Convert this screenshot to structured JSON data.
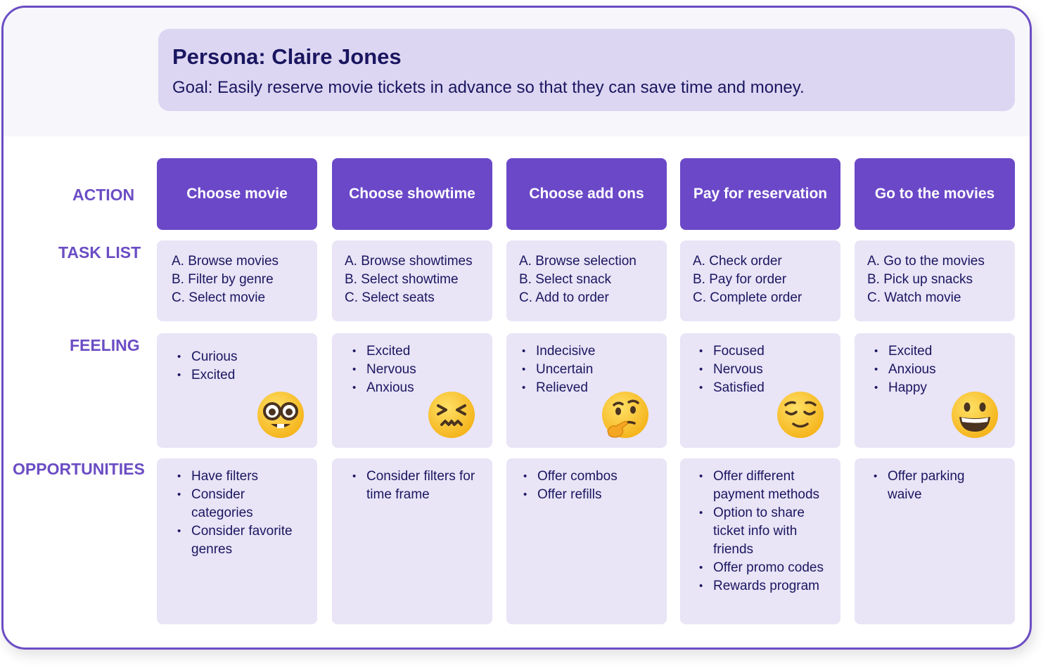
{
  "persona": {
    "name": "Persona: Claire Jones",
    "goal": "Goal: Easily reserve movie tickets in advance so that they can save time and money."
  },
  "row_labels": {
    "action": "ACTION",
    "task_list": "TASK LIST",
    "feeling": "FEELING",
    "opportunities": "OPPORTUNITIES"
  },
  "columns": [
    {
      "action": "Choose movie",
      "tasks": [
        "A. Browse movies",
        "B. Filter by genre",
        "C. Select movie"
      ],
      "feelings": [
        "Curious",
        "Excited"
      ],
      "emoji": "nerd-face-icon",
      "opportunities": [
        "Have filters",
        "Consider categories",
        "Consider favorite genres"
      ]
    },
    {
      "action": "Choose showtime",
      "tasks": [
        "A. Browse showtimes",
        "B. Select showtime",
        "C. Select seats"
      ],
      "feelings": [
        "Excited",
        "Nervous",
        "Anxious"
      ],
      "emoji": "confounded-face-icon",
      "opportunities": [
        "Consider filters for time frame"
      ]
    },
    {
      "action": "Choose add ons",
      "tasks": [
        "A. Browse selection",
        "B. Select snack",
        "C. Add to order"
      ],
      "feelings": [
        "Indecisive",
        "Uncertain",
        "Relieved"
      ],
      "emoji": "thinking-face-icon",
      "opportunities": [
        "Offer combos",
        "Offer refills"
      ]
    },
    {
      "action": "Pay for reservation",
      "tasks": [
        "A. Check order",
        "B. Pay for order",
        "C. Complete order"
      ],
      "feelings": [
        "Focused",
        "Nervous",
        "Satisfied"
      ],
      "emoji": "relieved-face-icon",
      "opportunities": [
        "Offer different payment methods",
        "Option to share ticket info with friends",
        "Offer promo codes",
        "Rewards program"
      ]
    },
    {
      "action": "Go to the movies",
      "tasks": [
        "A. Go to the movies",
        "B. Pick up snacks",
        "C. Watch movie"
      ],
      "feelings": [
        "Excited",
        "Anxious",
        "Happy"
      ],
      "emoji": "grinning-face-icon",
      "opportunities": [
        "Offer parking waive"
      ]
    }
  ],
  "colors": {
    "accent": "#6b48c8",
    "card": "#e9e4f6",
    "persona_card": "#dcd6f2",
    "text": "#1a1660"
  }
}
